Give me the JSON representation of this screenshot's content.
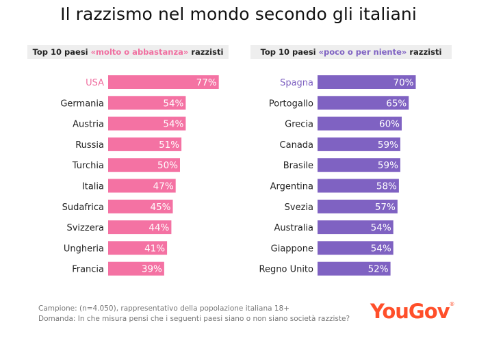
{
  "title": "Il razzismo nel mondo secondo gli italiani",
  "left_header": {
    "prefix": "Top 10 paesi ",
    "highlight": "«molto o abbastanza»",
    "suffix": " razzisti"
  },
  "right_header": {
    "prefix": "Top 10 paesi ",
    "highlight": "«poco o per niente»",
    "suffix": " razzisti"
  },
  "footer": {
    "sample": "Campione: (n=4.050), rappresentativo della popolazione italiana 18+",
    "question": "Domanda: In che misura pensi che i seguenti paesi siano o non siano società razziste?"
  },
  "logo": {
    "text": "YouGov",
    "mark": "®"
  },
  "colors": {
    "pink": "#f472a3",
    "purple": "#7f62c2",
    "logo": "#ff4f2a"
  },
  "chart_data": [
    {
      "type": "bar",
      "orientation": "horizontal",
      "categories": [
        "USA",
        "Germania",
        "Austria",
        "Russia",
        "Turchia",
        "Italia",
        "Sudafrica",
        "Svizzera",
        "Ungheria",
        "Francia"
      ],
      "values": [
        77,
        54,
        54,
        51,
        50,
        47,
        45,
        44,
        41,
        39
      ],
      "value_labels": [
        "77%",
        "54%",
        "54%",
        "51%",
        "50%",
        "47%",
        "45%",
        "44%",
        "41%",
        "39%"
      ],
      "color": "#f472a3"
    },
    {
      "type": "bar",
      "orientation": "horizontal",
      "categories": [
        "Spagna",
        "Portogallo",
        "Grecia",
        "Canada",
        "Brasile",
        "Argentina",
        "Svezia",
        "Australia",
        "Giappone",
        "Regno Unito"
      ],
      "values": [
        70,
        65,
        60,
        59,
        59,
        58,
        57,
        54,
        54,
        52
      ],
      "value_labels": [
        "70%",
        "65%",
        "60%",
        "59%",
        "59%",
        "58%",
        "57%",
        "54%",
        "54%",
        "52%"
      ],
      "color": "#7f62c2"
    }
  ]
}
